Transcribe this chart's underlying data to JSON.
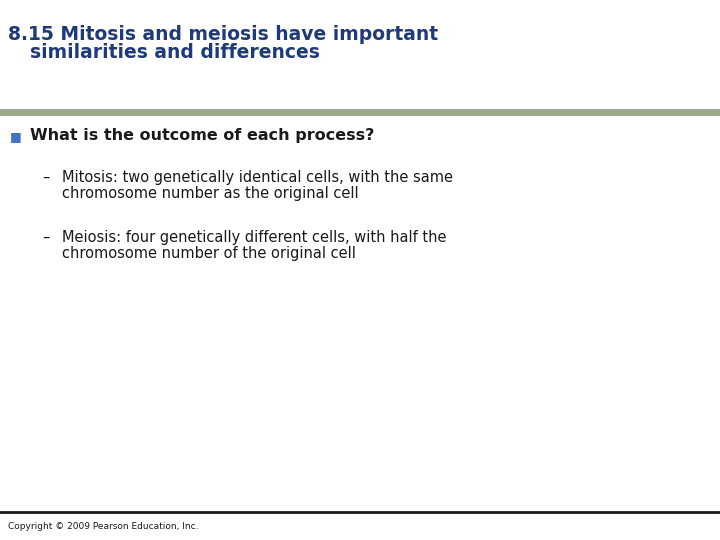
{
  "title_line1": "8.15 Mitosis and meiosis have important",
  "title_line2": "    similarities and differences",
  "title_color": "#1F3A7A",
  "title_fontsize": 13.5,
  "separator_color_top": "#9aaa8a",
  "separator_color_bottom": "#1a1a1a",
  "bg_color": "#ffffff",
  "bullet_text": "What is the outcome of each process?",
  "bullet_color": "#1a1a1a",
  "bullet_marker_color": "#4472c4",
  "bullet_fontsize": 11.5,
  "sub_bullet1_line1": "Mitosis: two genetically identical cells, with the same",
  "sub_bullet1_line2": "chromosome number as the original cell",
  "sub_bullet2_line1": "Meiosis: four genetically different cells, with half the",
  "sub_bullet2_line2": "chromosome number of the original cell",
  "sub_color": "#1a1a1a",
  "sub_fontsize": 10.5,
  "copyright": "Copyright © 2009 Pearson Education, Inc.",
  "copyright_fontsize": 6.5
}
